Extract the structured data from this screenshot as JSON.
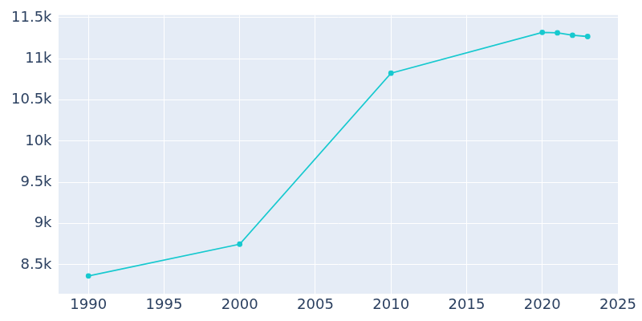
{
  "chart_data": {
    "type": "line",
    "x": [
      1990,
      2000,
      2010,
      2020,
      2021,
      2022,
      2023
    ],
    "values": [
      8365,
      8750,
      10825,
      11320,
      11315,
      11285,
      11270
    ],
    "color": "#17c9cf",
    "marker": "circle",
    "xlim": [
      1988,
      2025
    ],
    "xticks": [
      1990,
      1995,
      2000,
      2005,
      2010,
      2015,
      2020,
      2025
    ],
    "ylim": [
      8145,
      11530
    ],
    "yticks": [
      {
        "value": 8500,
        "label": "8.5k"
      },
      {
        "value": 9000,
        "label": "9k"
      },
      {
        "value": 9500,
        "label": "9.5k"
      },
      {
        "value": 10000,
        "label": "10k"
      },
      {
        "value": 10500,
        "label": "10.5k"
      },
      {
        "value": 11000,
        "label": "11k"
      },
      {
        "value": 11500,
        "label": "11.5k"
      }
    ],
    "grid": true
  }
}
